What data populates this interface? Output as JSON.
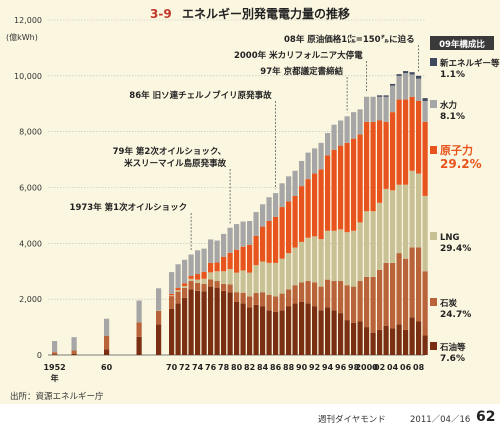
{
  "chart_data": {
    "type": "bar",
    "stacked": true,
    "title_num": "3-9",
    "title": "エネルギー別発電電力量の推移",
    "yunit": "(億kWh)",
    "ylim": [
      0,
      12000
    ],
    "yticks": [
      0,
      2000,
      4000,
      6000,
      8000,
      10000,
      12000
    ],
    "ytick_labels": [
      "0",
      "2,000",
      "4,000",
      "6,000",
      "8,000",
      "10,000",
      "12,000"
    ],
    "xtick_labels": [
      "1952",
      "60",
      "70",
      "72",
      "74",
      "76",
      "78",
      "80",
      "82",
      "84",
      "86",
      "88",
      "90",
      "92",
      "94",
      "96",
      "98",
      "2000",
      "02",
      "04",
      "06",
      "08"
    ],
    "x_year_suffix": "年",
    "grid": true,
    "legend_title": "09年構成比",
    "series": [
      {
        "name": "石油等",
        "share": "7.6%",
        "color": "#7a2f12"
      },
      {
        "name": "石炭",
        "share": "24.7%",
        "color": "#b9633a"
      },
      {
        "name": "LNG",
        "share": "29.4%",
        "color": "#c9c196"
      },
      {
        "name": "原子力",
        "share": "29.2%",
        "color": "#e8541d"
      },
      {
        "name": "水力",
        "share": "8.1%",
        "color": "#a6a6a6"
      },
      {
        "name": "新エネルギー等",
        "share": "1.1%",
        "color": "#3f4a61"
      }
    ],
    "bars": [
      {
        "year": 1952,
        "v": [
          20,
          80,
          0,
          0,
          400,
          0
        ]
      },
      {
        "year": 1955,
        "v": [
          40,
          120,
          0,
          0,
          480,
          0
        ]
      },
      {
        "year": 1960,
        "v": [
          200,
          480,
          0,
          0,
          620,
          0
        ]
      },
      {
        "year": 1965,
        "v": [
          650,
          520,
          0,
          0,
          780,
          0
        ]
      },
      {
        "year": 1968,
        "v": [
          1100,
          480,
          10,
          0,
          800,
          0
        ]
      },
      {
        "year": 1970,
        "v": [
          1650,
          460,
          30,
          50,
          780,
          0
        ]
      },
      {
        "year": 1971,
        "v": [
          1850,
          420,
          50,
          80,
          850,
          0
        ]
      },
      {
        "year": 1972,
        "v": [
          2050,
          350,
          70,
          100,
          840,
          0
        ]
      },
      {
        "year": 1973,
        "v": [
          2350,
          300,
          80,
          100,
          770,
          0
        ]
      },
      {
        "year": 1974,
        "v": [
          2300,
          280,
          120,
          200,
          850,
          0
        ]
      },
      {
        "year": 1975,
        "v": [
          2280,
          270,
          180,
          250,
          830,
          0
        ]
      },
      {
        "year": 1976,
        "v": [
          2450,
          260,
          250,
          340,
          840,
          0
        ]
      },
      {
        "year": 1977,
        "v": [
          2400,
          250,
          350,
          320,
          780,
          0
        ]
      },
      {
        "year": 1978,
        "v": [
          2300,
          250,
          450,
          520,
          820,
          0
        ]
      },
      {
        "year": 1979,
        "v": [
          2250,
          280,
          550,
          580,
          900,
          0
        ]
      },
      {
        "year": 1980,
        "v": [
          1900,
          350,
          700,
          820,
          920,
          0
        ]
      },
      {
        "year": 1981,
        "v": [
          1850,
          380,
          800,
          850,
          900,
          0
        ]
      },
      {
        "year": 1982,
        "v": [
          1700,
          400,
          850,
          1000,
          850,
          0
        ]
      },
      {
        "year": 1983,
        "v": [
          1800,
          420,
          1000,
          1050,
          850,
          0
        ]
      },
      {
        "year": 1984,
        "v": [
          1750,
          500,
          1100,
          1250,
          800,
          0
        ]
      },
      {
        "year": 1985,
        "v": [
          1600,
          550,
          1150,
          1500,
          850,
          0
        ]
      },
      {
        "year": 1986,
        "v": [
          1550,
          550,
          1200,
          1650,
          850,
          0
        ]
      },
      {
        "year": 1987,
        "v": [
          1600,
          600,
          1250,
          1850,
          850,
          0
        ]
      },
      {
        "year": 1988,
        "v": [
          1750,
          600,
          1300,
          1850,
          900,
          0
        ]
      },
      {
        "year": 1989,
        "v": [
          1850,
          650,
          1350,
          1850,
          900,
          0
        ]
      },
      {
        "year": 1990,
        "v": [
          1900,
          700,
          1450,
          2000,
          900,
          0
        ]
      },
      {
        "year": 1991,
        "v": [
          1850,
          800,
          1550,
          2100,
          950,
          0
        ]
      },
      {
        "year": 1992,
        "v": [
          1750,
          850,
          1650,
          2250,
          900,
          0
        ]
      },
      {
        "year": 1993,
        "v": [
          1600,
          850,
          1700,
          2500,
          950,
          0
        ]
      },
      {
        "year": 1994,
        "v": [
          1700,
          1000,
          1750,
          2700,
          800,
          0
        ]
      },
      {
        "year": 1995,
        "v": [
          1600,
          1050,
          1800,
          2900,
          900,
          0
        ]
      },
      {
        "year": 1996,
        "v": [
          1500,
          1150,
          1850,
          3000,
          900,
          0
        ]
      },
      {
        "year": 1997,
        "v": [
          1250,
          1250,
          1900,
          3200,
          950,
          0
        ]
      },
      {
        "year": 1998,
        "v": [
          1150,
          1300,
          2000,
          3300,
          950,
          0
        ]
      },
      {
        "year": 1999,
        "v": [
          1200,
          1450,
          2100,
          3150,
          900,
          0
        ]
      },
      {
        "year": 2000,
        "v": [
          1000,
          1800,
          2350,
          3200,
          900,
          0
        ]
      },
      {
        "year": 2001,
        "v": [
          800,
          2000,
          2350,
          3200,
          900,
          0
        ]
      },
      {
        "year": 2002,
        "v": [
          900,
          2150,
          2400,
          2950,
          850,
          50
        ]
      },
      {
        "year": 2003,
        "v": [
          1050,
          2250,
          2650,
          2400,
          900,
          50
        ]
      },
      {
        "year": 2004,
        "v": [
          950,
          2350,
          2600,
          2800,
          950,
          60
        ]
      },
      {
        "year": 2005,
        "v": [
          1100,
          2550,
          2450,
          3050,
          850,
          60
        ]
      },
      {
        "year": 2006,
        "v": [
          900,
          2550,
          2650,
          3050,
          950,
          70
        ]
      },
      {
        "year": 2007,
        "v": [
          1350,
          2500,
          2750,
          2650,
          800,
          80
        ]
      },
      {
        "year": 2008,
        "v": [
          1200,
          2650,
          2650,
          2600,
          800,
          100
        ]
      },
      {
        "year": 2009,
        "v": [
          700,
          2300,
          2700,
          2650,
          750,
          100
        ]
      }
    ],
    "annotations": [
      {
        "text": "08年 原油価格1㌭=150㌦に迫る",
        "year": 2008
      },
      {
        "text": "2000年 米カリフォルニア大停電",
        "year": 2000
      },
      {
        "text": "97年 京都議定書締結",
        "year": 1997
      },
      {
        "text": "86年 旧ソ連チェルノブイリ原発事故",
        "year": 1986
      },
      {
        "text": "79年 第2次オイルショック、",
        "text2": "米スリーマイル島原発事故",
        "year": 1979
      },
      {
        "text": "1973年 第1次オイルショック",
        "year": 1973
      }
    ]
  },
  "source": "出所：資源エネルギー庁",
  "magazine": "週刊ダイヤモンド",
  "issue_date": "2011／04／16",
  "page_number": "62"
}
